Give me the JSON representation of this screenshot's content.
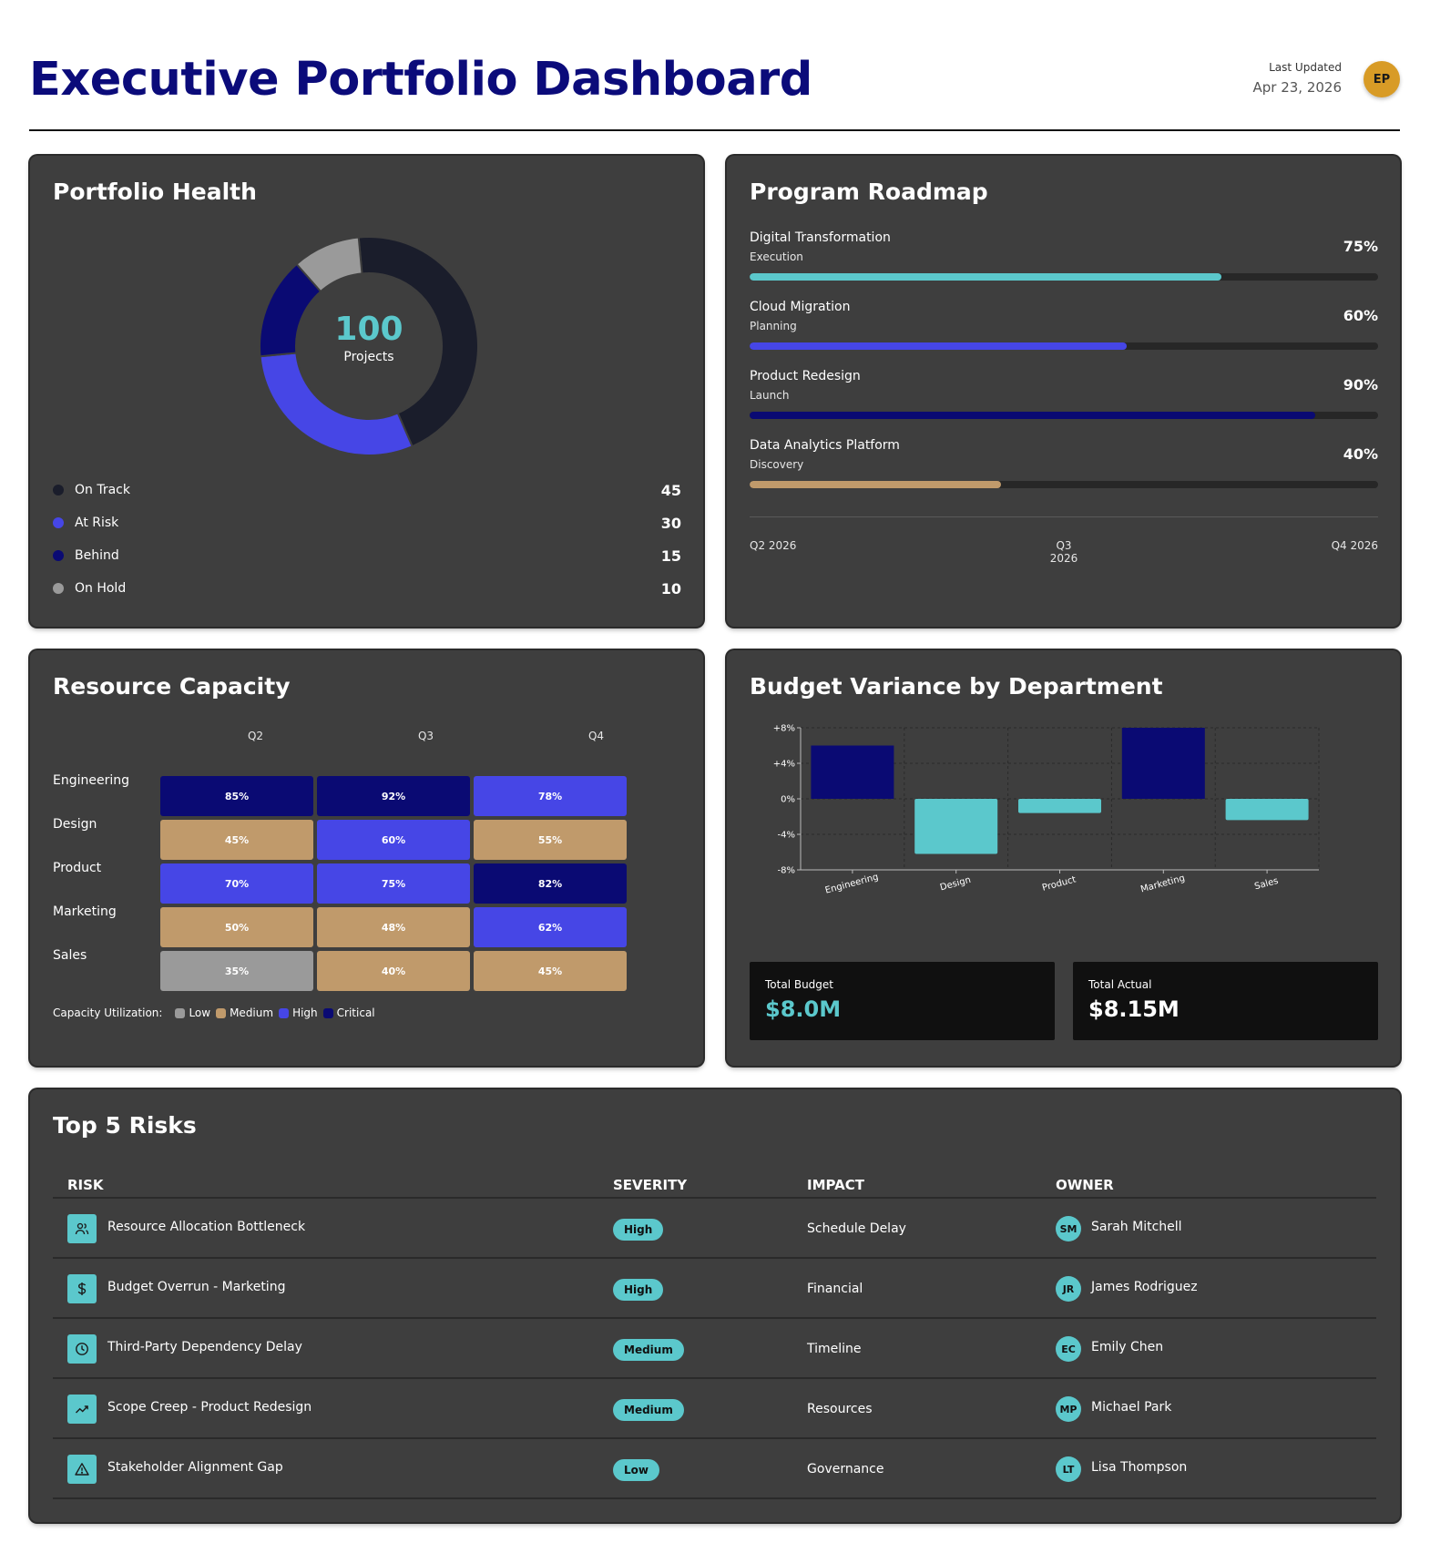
{
  "header": {
    "title": "Executive Portfolio Dashboard",
    "last_updated_label": "Last Updated",
    "last_updated_date": "Apr 23, 2026",
    "user_initials": "EP"
  },
  "health": {
    "title": "Portfolio Health",
    "total": "100",
    "total_label": "Projects",
    "segments": [
      {
        "label": "On Track",
        "value": 45,
        "count": "45",
        "color": "#1a1d2b"
      },
      {
        "label": "At Risk",
        "value": 30,
        "count": "30",
        "color": "#4646e6"
      },
      {
        "label": "Behind",
        "value": 15,
        "count": "15",
        "color": "#0a0a73"
      },
      {
        "label": "On Hold",
        "value": 10,
        "count": "10",
        "color": "#9a9a9a"
      }
    ]
  },
  "roadmap": {
    "title": "Program Roadmap",
    "items": [
      {
        "name": "Digital Transformation",
        "phase": "Execution",
        "pct": "75%",
        "progress": 0.75,
        "color": "#5bc8cc"
      },
      {
        "name": "Cloud Migration",
        "phase": "Planning",
        "pct": "60%",
        "progress": 0.6,
        "color": "#4646e6"
      },
      {
        "name": "Product Redesign",
        "phase": "Launch",
        "pct": "90%",
        "progress": 0.9,
        "color": "#0a0a73"
      },
      {
        "name": "Data Analytics Platform",
        "phase": "Discovery",
        "pct": "40%",
        "progress": 0.4,
        "color": "#c09a6b"
      }
    ],
    "timeline": [
      "Q2 2026",
      "Q3 2026",
      "Q4 2026"
    ]
  },
  "capacity": {
    "title": "Resource Capacity",
    "columns": [
      "Q2",
      "Q3",
      "Q4"
    ],
    "rows": [
      {
        "label": "Engineering",
        "cells": [
          {
            "text": "85%",
            "level": "critical"
          },
          {
            "text": "92%",
            "level": "critical"
          },
          {
            "text": "78%",
            "level": "high"
          }
        ]
      },
      {
        "label": "Design",
        "cells": [
          {
            "text": "45%",
            "level": "medium"
          },
          {
            "text": "60%",
            "level": "high"
          },
          {
            "text": "55%",
            "level": "medium"
          }
        ]
      },
      {
        "label": "Product",
        "cells": [
          {
            "text": "70%",
            "level": "high"
          },
          {
            "text": "75%",
            "level": "high"
          },
          {
            "text": "82%",
            "level": "critical"
          }
        ]
      },
      {
        "label": "Marketing",
        "cells": [
          {
            "text": "50%",
            "level": "medium"
          },
          {
            "text": "48%",
            "level": "medium"
          },
          {
            "text": "62%",
            "level": "high"
          }
        ]
      },
      {
        "label": "Sales",
        "cells": [
          {
            "text": "35%",
            "level": "low"
          },
          {
            "text": "40%",
            "level": "medium"
          },
          {
            "text": "45%",
            "level": "medium"
          }
        ]
      }
    ],
    "legend_title": "Capacity Utilization:",
    "legend": [
      {
        "label": "Low",
        "color": "#9a9a9a"
      },
      {
        "label": "Medium",
        "color": "#c09a6b"
      },
      {
        "label": "High",
        "color": "#4646e6"
      },
      {
        "label": "Critical",
        "color": "#0a0a73"
      }
    ]
  },
  "budget": {
    "title": "Budget Variance by Department",
    "total_budget_label": "Total Budget",
    "total_budget_value": "$8.0M",
    "total_actual_label": "Total Actual",
    "total_actual_value": "$8.15M",
    "colors": {
      "positive": "#0a0a73",
      "negative": "#5bc8cc"
    }
  },
  "chart_data": {
    "type": "bar",
    "title": "Budget Variance by Department",
    "categories": [
      "Engineering",
      "Design",
      "Product",
      "Marketing",
      "Sales"
    ],
    "values": [
      6,
      -6.2,
      -1.6,
      8,
      -2.4
    ],
    "yticks": [
      "+8%",
      "+4%",
      "0%",
      "-4%",
      "-8%"
    ],
    "ylim": [
      -8,
      8
    ],
    "grid": true,
    "xlabel": "",
    "ylabel": ""
  },
  "risks": {
    "title": "Top 5 Risks",
    "headers": [
      "RISK",
      "SEVERITY",
      "IMPACT",
      "OWNER"
    ],
    "rows": [
      {
        "icon": "users-icon",
        "name": "Resource Allocation Bottleneck",
        "severity": "High",
        "impact": "Schedule Delay",
        "initials": "SM",
        "owner": "Sarah Mitchell"
      },
      {
        "icon": "dollar-icon",
        "name": "Budget Overrun - Marketing",
        "severity": "High",
        "impact": "Financial",
        "initials": "JR",
        "owner": "James Rodriguez"
      },
      {
        "icon": "clock-icon",
        "name": "Third-Party Dependency Delay",
        "severity": "Medium",
        "impact": "Timeline",
        "initials": "EC",
        "owner": "Emily Chen"
      },
      {
        "icon": "trending-up-icon",
        "name": "Scope Creep - Product Redesign",
        "severity": "Medium",
        "impact": "Resources",
        "initials": "MP",
        "owner": "Michael Park"
      },
      {
        "icon": "warning-icon",
        "name": "Stakeholder Alignment Gap",
        "severity": "Low",
        "impact": "Governance",
        "initials": "LT",
        "owner": "Lisa Thompson"
      }
    ]
  }
}
